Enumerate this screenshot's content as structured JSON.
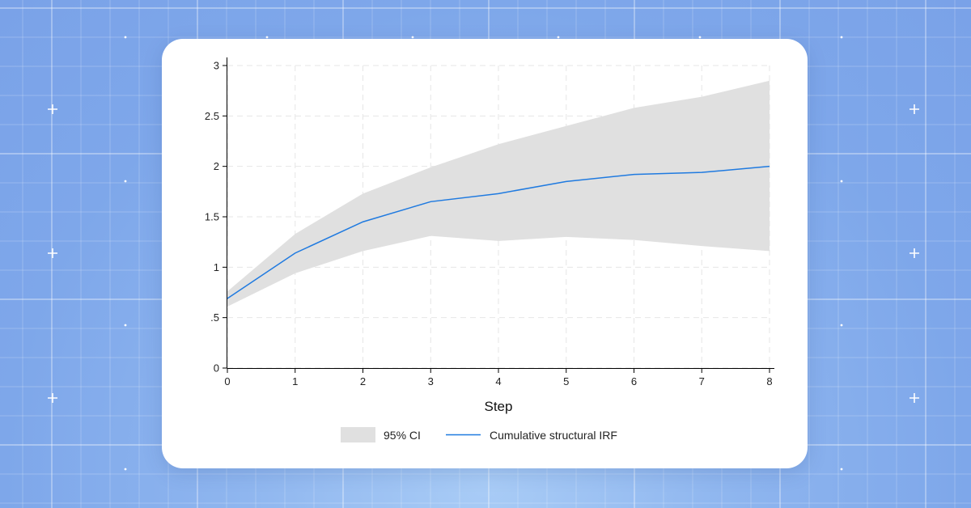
{
  "colors": {
    "ci_fill": "#e0e0e0",
    "irf_line": "#1f7ae0",
    "grid": "#e6e6e6",
    "axis": "#000000"
  },
  "chart_data": {
    "type": "line",
    "title": "",
    "xlabel": "Step",
    "ylabel": "",
    "x": [
      0,
      1,
      2,
      3,
      4,
      5,
      6,
      7,
      8
    ],
    "xlim": [
      0,
      8
    ],
    "ylim": [
      0,
      3
    ],
    "x_ticks": [
      "0",
      "1",
      "2",
      "3",
      "4",
      "5",
      "6",
      "7",
      "8"
    ],
    "y_ticks": [
      {
        "value": 0,
        "label": "0"
      },
      {
        "value": 0.5,
        "label": ".5"
      },
      {
        "value": 1,
        "label": "1"
      },
      {
        "value": 1.5,
        "label": "1.5"
      },
      {
        "value": 2,
        "label": "2"
      },
      {
        "value": 2.5,
        "label": "2.5"
      },
      {
        "value": 3,
        "label": "3"
      }
    ],
    "grid": true,
    "legend_position": "bottom",
    "band": {
      "name": "95% CI",
      "lower": [
        0.61,
        0.94,
        1.16,
        1.31,
        1.26,
        1.3,
        1.27,
        1.21,
        1.16
      ],
      "upper": [
        0.76,
        1.33,
        1.73,
        1.99,
        2.22,
        2.4,
        2.58,
        2.69,
        2.85
      ]
    },
    "series": [
      {
        "name": "Cumulative structural IRF",
        "values": [
          0.69,
          1.14,
          1.45,
          1.65,
          1.73,
          1.85,
          1.92,
          1.94,
          2.0
        ]
      }
    ]
  }
}
